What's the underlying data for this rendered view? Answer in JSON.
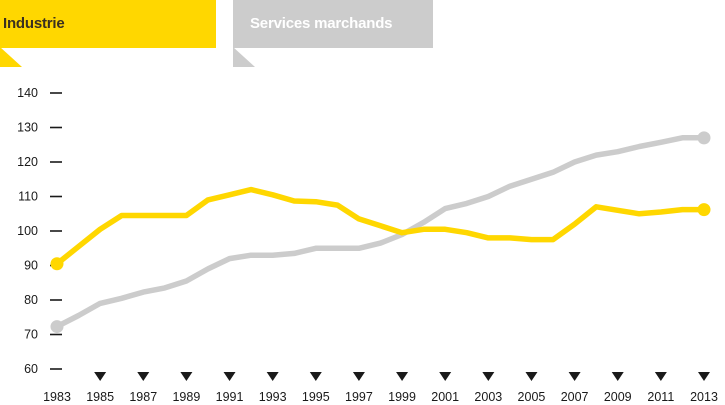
{
  "legend": {
    "industrie": "Industrie",
    "services": "Services marchands"
  },
  "colors": {
    "industrie": "#ffd700",
    "services": "#cccccc",
    "axis": "#1a1a1a",
    "tag_text_dark": "#3a3020"
  },
  "chart_data": {
    "type": "line",
    "title": "",
    "xlabel": "",
    "ylabel": "",
    "ylim": [
      60,
      140
    ],
    "xlim": [
      1983,
      2013
    ],
    "yticks": [
      60,
      70,
      80,
      90,
      100,
      110,
      120,
      130,
      140
    ],
    "xticks": [
      1983,
      1985,
      1987,
      1989,
      1991,
      1993,
      1995,
      1997,
      1999,
      2001,
      2003,
      2005,
      2007,
      2009,
      2011,
      2013
    ],
    "grid": false,
    "legend_position": "top-left",
    "series": [
      {
        "name": "Industrie",
        "color": "#ffd700",
        "x": [
          1983,
          1984,
          1985,
          1986,
          1987,
          1988,
          1989,
          1990,
          1991,
          1992,
          1993,
          1994,
          1995,
          1996,
          1997,
          1998,
          1999,
          2000,
          2001,
          2002,
          2003,
          2004,
          2005,
          2005.5,
          2006,
          2007,
          2008,
          2009,
          2010,
          2011,
          2012,
          2013
        ],
        "y": [
          90.5,
          95.5,
          100.5,
          104.5,
          104.5,
          104.5,
          104.5,
          109,
          110.5,
          112,
          110.5,
          108.7,
          108.5,
          107.5,
          103.5,
          101.5,
          99.5,
          100.5,
          100.5,
          99.5,
          98,
          98,
          97.5,
          97.5,
          97.5,
          102,
          107,
          106,
          105,
          105.5,
          106.2,
          106.2
        ]
      },
      {
        "name": "Services marchands",
        "color": "#cccccc",
        "x": [
          1983,
          1984,
          1985,
          1986,
          1987,
          1988,
          1989,
          1990,
          1991,
          1992,
          1993,
          1994,
          1995,
          1996,
          1997,
          1998,
          1999,
          2000,
          2001,
          2002,
          2003,
          2004,
          2005,
          2006,
          2007,
          2008,
          2009,
          2010,
          2011,
          2012,
          2013
        ],
        "y": [
          72.3,
          75.5,
          79,
          80.5,
          82.3,
          83.5,
          85.5,
          89,
          92,
          93,
          93,
          93.5,
          95,
          95,
          95,
          96.5,
          99,
          102.5,
          106.5,
          108,
          110,
          113,
          115,
          117,
          120,
          122,
          123,
          124.5,
          125.7,
          127,
          127
        ]
      }
    ]
  }
}
